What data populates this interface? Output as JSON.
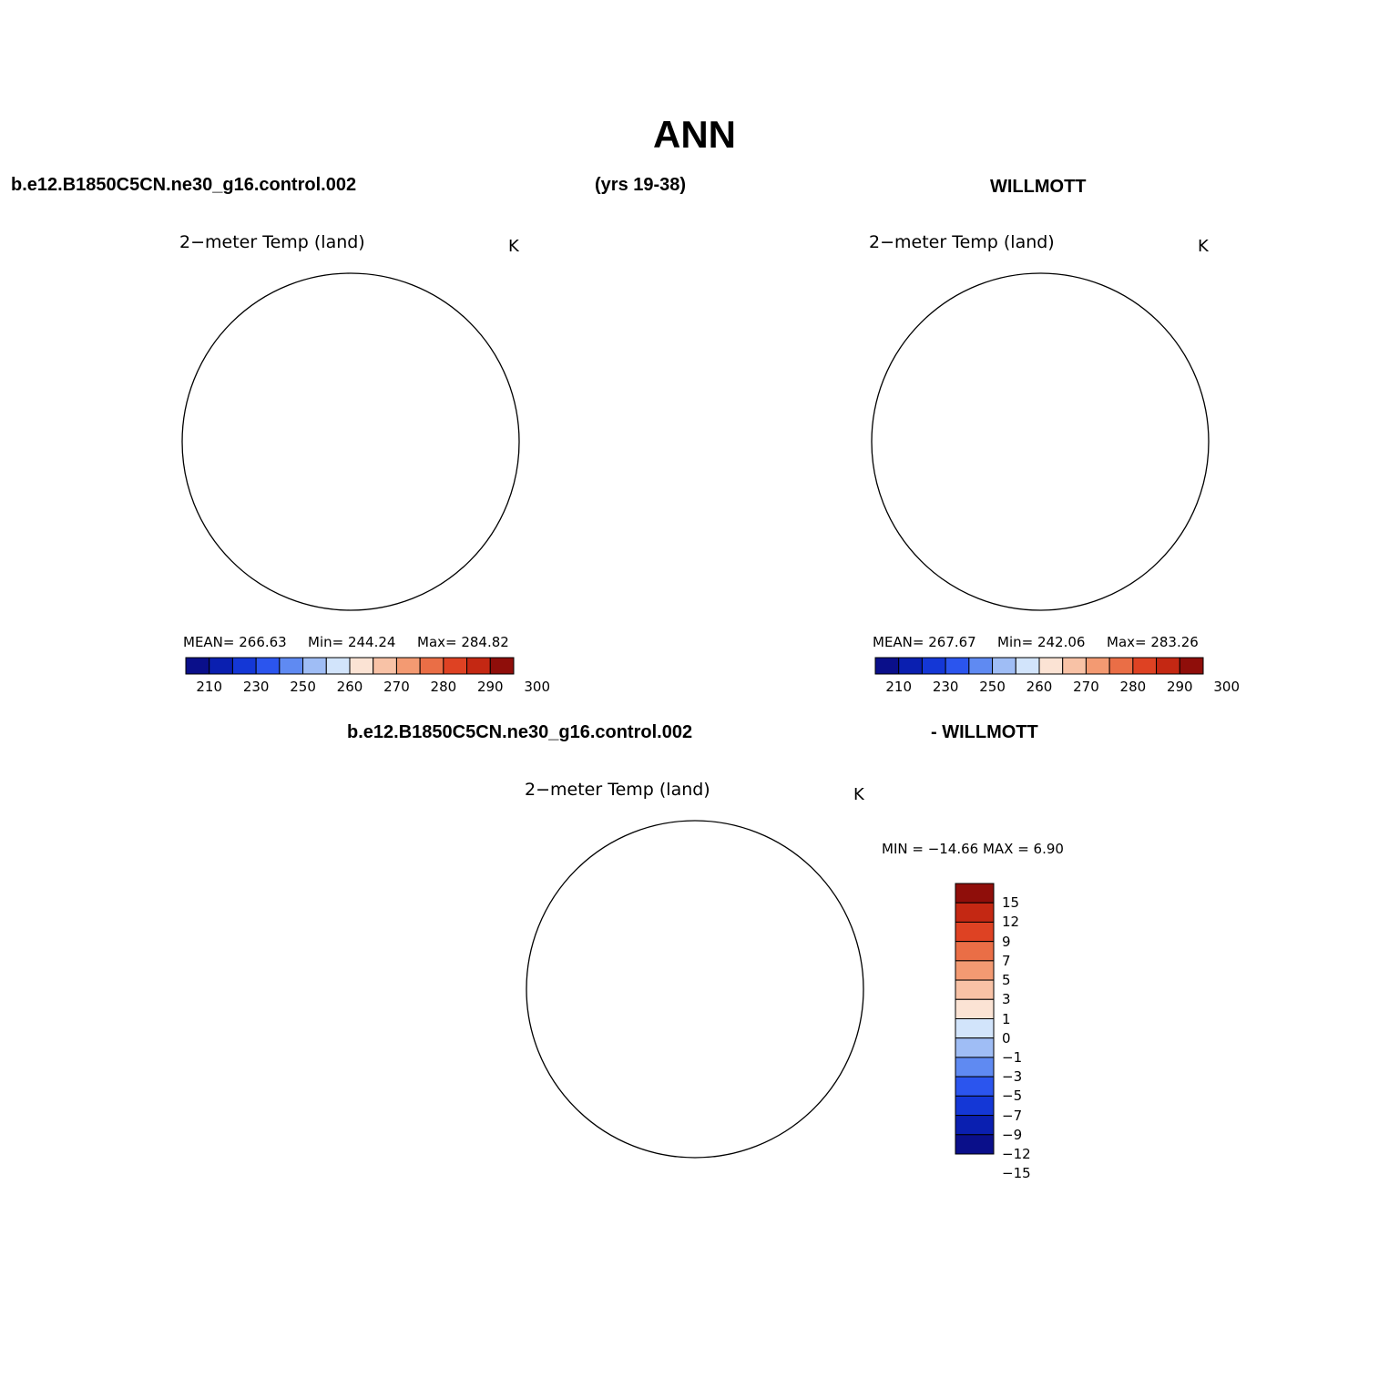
{
  "title": "ANN",
  "header": {
    "case_name": "b.e12.B1850C5CN.ne30_g16.control.002",
    "years": "(yrs 19-38)",
    "obs_name": "WILLMOTT"
  },
  "diff_header": {
    "case_name": "b.e12.B1850C5CN.ne30_g16.control.002",
    "obs_name": "- WILLMOTT"
  },
  "panels": [
    {
      "title": "2−meter Temp (land)",
      "units": "K",
      "stats": {
        "mean": "MEAN= 266.63",
        "min": "Min= 244.24",
        "max": "Max= 284.82"
      }
    },
    {
      "title": "2−meter Temp (land)",
      "units": "K",
      "stats": {
        "mean": "MEAN= 267.67",
        "min": "Min= 242.06",
        "max": "Max= 283.26"
      }
    },
    {
      "title": "2−meter Temp (land)",
      "units": "K",
      "stats": {
        "minmax": "MIN = −14.66 MAX =    6.90"
      }
    }
  ],
  "colorbar_abs": {
    "colors": [
      "#0a0f8a",
      "#0a1fb0",
      "#1437d6",
      "#2b55ee",
      "#5f8af2",
      "#9fbdf5",
      "#d2e4fb",
      "#fbe3d4",
      "#f8c2a6",
      "#f39a72",
      "#ea6e46",
      "#de4223",
      "#c42813",
      "#8f0e0a"
    ],
    "labels": [
      "210",
      "230",
      "250",
      "260",
      "270",
      "280",
      "290",
      "300"
    ]
  },
  "colorbar_diff": {
    "colors": [
      "#0a0f8a",
      "#0a1fb0",
      "#1437d6",
      "#2b55ee",
      "#5f8af2",
      "#9fbdf5",
      "#d2e4fb",
      "#fbe3d4",
      "#f8c2a6",
      "#f39a72",
      "#ea6e46",
      "#de4223",
      "#c42813",
      "#8f0e0a"
    ],
    "labels": [
      "15",
      "12",
      "9",
      "7",
      "5",
      "3",
      "1",
      "0",
      "−1",
      "−3",
      "−5",
      "−7",
      "−9",
      "−12",
      "−15"
    ]
  }
}
